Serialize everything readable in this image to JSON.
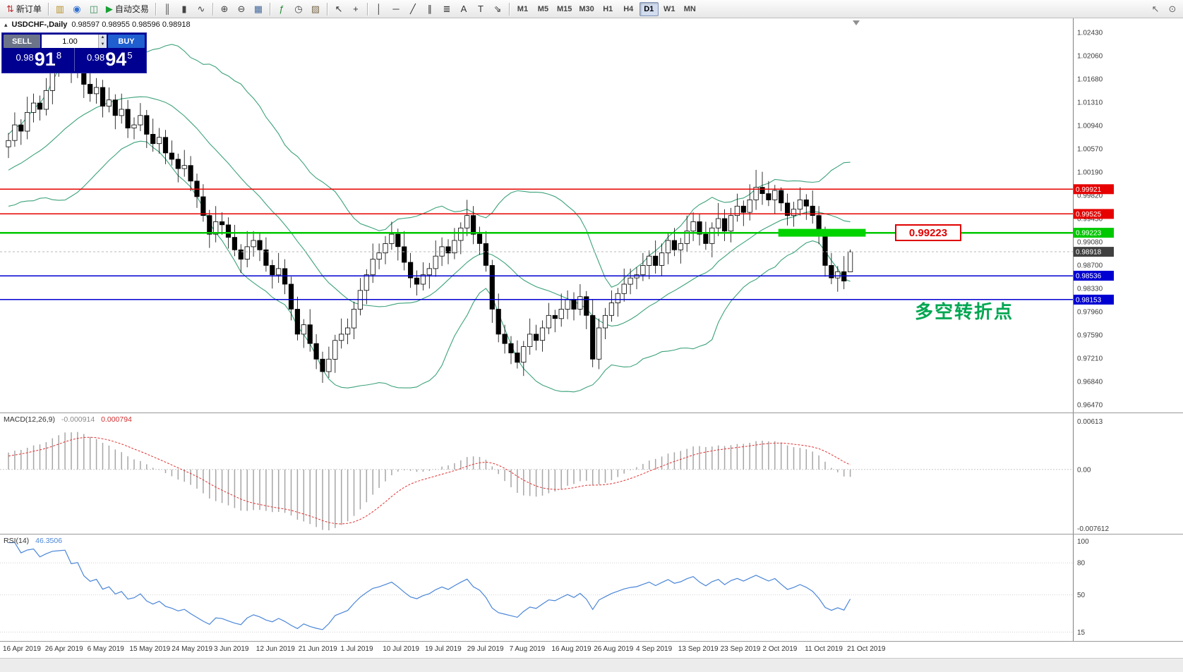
{
  "colors": {
    "bollinger": "#3da27a",
    "level_red": "#e60000",
    "level_blue": "#0000d2",
    "level_green": "#00c800",
    "zone": "#00d300",
    "current_tag": "#404040",
    "macd_hist": "#a6a6a6",
    "macd_signal": "#e03232",
    "rsi_line": "#4a86d8",
    "annotation_green": "#00a651",
    "bull_candle": "#ffffff",
    "bear_candle": "#000000"
  },
  "icons": {
    "title_marker": "▴",
    "spin_up": "▲",
    "spin_down": "▼"
  },
  "toolbar": {
    "items": [
      {
        "name": "new-order",
        "glyph": "⇅",
        "color": "#c03030",
        "label": "新订单"
      },
      {
        "sep": true
      },
      {
        "name": "market-watch",
        "glyph": "▥",
        "color": "#b8922a"
      },
      {
        "name": "data-window",
        "glyph": "◉",
        "color": "#2f6fd0"
      },
      {
        "name": "navigator",
        "glyph": "◫",
        "color": "#3f8f5f"
      },
      {
        "name": "auto-trading",
        "glyph": "▶",
        "color": "#17a034",
        "label": "自动交易"
      },
      {
        "sep": true
      },
      {
        "name": "chart-bars",
        "glyph": "║",
        "color": "#444444"
      },
      {
        "name": "chart-candlesticks",
        "glyph": "▮",
        "color": "#444444"
      },
      {
        "name": "chart-line",
        "glyph": "∿",
        "color": "#444444"
      },
      {
        "sep": true
      },
      {
        "name": "zoom-in",
        "glyph": "⊕",
        "color": "#444444"
      },
      {
        "name": "zoom-out",
        "glyph": "⊖",
        "color": "#444444"
      },
      {
        "name": "tile-windows",
        "glyph": "▦",
        "color": "#44699c"
      },
      {
        "sep": true
      },
      {
        "name": "indicators",
        "glyph": "ƒ",
        "color": "#1d8a2f"
      },
      {
        "name": "periods",
        "glyph": "◷",
        "color": "#444444"
      },
      {
        "name": "templates",
        "glyph": "▨",
        "color": "#7a6a4a"
      },
      {
        "sep": true
      },
      {
        "name": "cursor",
        "glyph": "↖",
        "color": "#333333"
      },
      {
        "name": "crosshair",
        "glyph": "+",
        "color": "#333333"
      },
      {
        "sep": true
      },
      {
        "name": "draw-vertical-line",
        "glyph": "│",
        "color": "#333333"
      },
      {
        "name": "draw-horizontal-line",
        "glyph": "─",
        "color": "#333333"
      },
      {
        "name": "draw-trendline",
        "glyph": "╱",
        "color": "#333333"
      },
      {
        "name": "draw-channel",
        "glyph": "∥",
        "color": "#333333"
      },
      {
        "name": "draw-fibonacci",
        "glyph": "≣",
        "color": "#333333"
      },
      {
        "name": "draw-text",
        "glyph": "A",
        "color": "#333333"
      },
      {
        "name": "draw-label",
        "glyph": "T",
        "color": "#333333"
      },
      {
        "name": "draw-arrows",
        "glyph": "⇘",
        "color": "#333333"
      },
      {
        "sep": true
      }
    ],
    "timeframes": [
      "M1",
      "M5",
      "M15",
      "M30",
      "H1",
      "H4",
      "D1",
      "W1",
      "MN"
    ],
    "active_timeframe": "D1",
    "right_items": [
      {
        "name": "pointer-tool",
        "glyph": "↖",
        "color": "#666666"
      },
      {
        "name": "quick-search",
        "glyph": "⊙",
        "color": "#666666"
      }
    ]
  },
  "chart": {
    "symbol_title": "USDCHF-,Daily",
    "ohlc": "0.98597 0.98955 0.98596 0.98918",
    "price_callout": "0.99223",
    "annotation": "多空转折点",
    "trade_panel": {
      "sell_label": "SELL",
      "buy_label": "BUY",
      "volume": "1.00",
      "sell_price": {
        "base": "0.98",
        "big": "91",
        "pip": "8"
      },
      "buy_price": {
        "base": "0.98",
        "big": "94",
        "pip": "5"
      }
    }
  },
  "indicators": {
    "macd": {
      "label": "MACD(12,26,9)",
      "value_main": "-0.000914",
      "value_signal": "0.000794"
    },
    "rsi": {
      "label": "RSI(14)",
      "value": "46.3506"
    }
  },
  "chart_data": {
    "type": "candlestick",
    "symbol": "USDCHF-",
    "timeframe": "D1",
    "y_range": [
      0.9647,
      1.0243
    ],
    "price_axis_labels": [
      "1.02430",
      "1.02060",
      "1.01680",
      "1.01310",
      "1.00940",
      "1.00570",
      "1.00190",
      "0.99820",
      "0.99450",
      "0.99080",
      "0.98700",
      "0.98330",
      "0.97960",
      "0.97590",
      "0.97210",
      "0.96840",
      "0.96470"
    ],
    "date_labels": [
      "16 Apr 2019",
      "26 Apr 2019",
      "6 May 2019",
      "15 May 2019",
      "24 May 2019",
      "3 Jun 2019",
      "12 Jun 2019",
      "21 Jun 2019",
      "1 Jul 2019",
      "10 Jul 2019",
      "19 Jul 2019",
      "29 Jul 2019",
      "7 Aug 2019",
      "16 Aug 2019",
      "26 Aug 2019",
      "4 Sep 2019",
      "13 Sep 2019",
      "23 Sep 2019",
      "2 Oct 2019",
      "11 Oct 2019",
      "21 Oct 2019"
    ],
    "levels": [
      {
        "price": 0.99921,
        "label": "0.99921",
        "color": "#e60000",
        "type": "resistance"
      },
      {
        "price": 0.99525,
        "label": "0.99525",
        "color": "#e60000",
        "type": "resistance"
      },
      {
        "price": 0.99223,
        "label": "0.99223",
        "color": "#00c800",
        "type": "pivot"
      },
      {
        "price": 0.98918,
        "label": "0.98918",
        "color": "#404040",
        "type": "current"
      },
      {
        "price": 0.98536,
        "label": "0.98536",
        "color": "#0000d2",
        "type": "support"
      },
      {
        "price": 0.98153,
        "label": "0.98153",
        "color": "#0000d2",
        "type": "support"
      }
    ],
    "green_zone": {
      "price": 0.99223,
      "start_index": 123,
      "end_index": 136
    },
    "overlays": {
      "bollinger": {
        "period": 20,
        "deviation": 2,
        "color": "#3da27a"
      }
    },
    "macd": {
      "params": [
        12,
        26,
        9
      ],
      "axis_labels": [
        "0.00613",
        "0.00",
        "-0.007612"
      ],
      "y_range": [
        -0.007612,
        0.00613
      ]
    },
    "rsi": {
      "period": 14,
      "axis_labels": [
        "100",
        "80",
        "50",
        "15"
      ],
      "levels": [
        80,
        50,
        15
      ],
      "last_value": 46.3506
    },
    "candles": [
      [
        1.006,
        1.0082,
        1.0042,
        1.007
      ],
      [
        1.007,
        1.0115,
        1.006,
        1.0095
      ],
      [
        1.0095,
        1.0104,
        1.0063,
        1.0085
      ],
      [
        1.0085,
        1.014,
        1.0072,
        1.0115
      ],
      [
        1.0115,
        1.0145,
        1.0099,
        1.013
      ],
      [
        1.013,
        1.0142,
        1.0102,
        1.012
      ],
      [
        1.012,
        1.017,
        1.011,
        1.015
      ],
      [
        1.015,
        1.0194,
        1.0128,
        1.0185
      ],
      [
        1.0185,
        1.022,
        1.0172,
        1.0195
      ],
      [
        1.0195,
        1.022,
        1.0179,
        1.0205
      ],
      [
        1.0205,
        1.0217,
        1.0162,
        1.018
      ],
      [
        1.018,
        1.021,
        1.017,
        1.019
      ],
      [
        1.019,
        1.0199,
        1.0138,
        1.016
      ],
      [
        1.016,
        1.0185,
        1.0132,
        1.0145
      ],
      [
        1.0145,
        1.017,
        1.0129,
        1.0155
      ],
      [
        1.0155,
        1.0167,
        1.0107,
        1.0125
      ],
      [
        1.0125,
        1.0155,
        1.0115,
        1.0135
      ],
      [
        1.0135,
        1.0144,
        1.0088,
        1.011
      ],
      [
        1.011,
        1.0145,
        1.0097,
        1.012
      ],
      [
        1.012,
        1.0135,
        1.0074,
        1.009
      ],
      [
        1.009,
        1.0107,
        1.0072,
        1.0095
      ],
      [
        1.0095,
        1.013,
        1.0085,
        1.011
      ],
      [
        1.011,
        1.0119,
        1.0058,
        1.008
      ],
      [
        1.008,
        1.0105,
        1.0052,
        1.0065
      ],
      [
        1.0065,
        1.009,
        1.0049,
        1.0075
      ],
      [
        1.0075,
        1.0087,
        1.0032,
        1.005
      ],
      [
        1.005,
        1.007,
        1.003,
        1.004
      ],
      [
        1.004,
        1.0049,
        1.0003,
        1.0025
      ],
      [
        1.0025,
        1.0055,
        1.0012,
        1.003
      ],
      [
        1.003,
        1.0045,
        0.9989,
        1.0005
      ],
      [
        1.0005,
        1.0017,
        0.9962,
        0.998
      ],
      [
        0.998,
        1.0,
        0.994,
        0.995
      ],
      [
        0.995,
        0.9959,
        0.9898,
        0.992
      ],
      [
        0.992,
        0.9965,
        0.9907,
        0.994
      ],
      [
        0.994,
        0.9955,
        0.9919,
        0.9935
      ],
      [
        0.9935,
        0.9947,
        0.9897,
        0.9915
      ],
      [
        0.9915,
        0.9935,
        0.9885,
        0.9895
      ],
      [
        0.9895,
        0.9904,
        0.9858,
        0.988
      ],
      [
        0.988,
        0.9925,
        0.9867,
        0.99
      ],
      [
        0.99,
        0.9925,
        0.9884,
        0.991
      ],
      [
        0.991,
        0.9922,
        0.9877,
        0.9895
      ],
      [
        0.9895,
        0.9915,
        0.986,
        0.987
      ],
      [
        0.987,
        0.9879,
        0.9833,
        0.9855
      ],
      [
        0.9855,
        0.989,
        0.9842,
        0.9865
      ],
      [
        0.9865,
        0.988,
        0.9824,
        0.984
      ],
      [
        0.984,
        0.9852,
        0.9782,
        0.98
      ],
      [
        0.98,
        0.982,
        0.975,
        0.976
      ],
      [
        0.976,
        0.9784,
        0.9738,
        0.9775
      ],
      [
        0.9775,
        0.98,
        0.9732,
        0.9745
      ],
      [
        0.9745,
        0.976,
        0.9704,
        0.972
      ],
      [
        0.972,
        0.9732,
        0.9682,
        0.97
      ],
      [
        0.97,
        0.974,
        0.969,
        0.972
      ],
      [
        0.972,
        0.9759,
        0.9698,
        0.975
      ],
      [
        0.975,
        0.9785,
        0.9737,
        0.976
      ],
      [
        0.976,
        0.9785,
        0.9744,
        0.977
      ],
      [
        0.977,
        0.9812,
        0.9752,
        0.98
      ],
      [
        0.98,
        0.985,
        0.979,
        0.983
      ],
      [
        0.983,
        0.9864,
        0.9808,
        0.9855
      ],
      [
        0.9855,
        0.9905,
        0.9842,
        0.988
      ],
      [
        0.988,
        0.9905,
        0.9864,
        0.989
      ],
      [
        0.989,
        0.9917,
        0.9872,
        0.9905
      ],
      [
        0.9905,
        0.994,
        0.9895,
        0.992
      ],
      [
        0.992,
        0.9929,
        0.9878,
        0.99
      ],
      [
        0.99,
        0.9925,
        0.9862,
        0.9875
      ],
      [
        0.9875,
        0.989,
        0.9834,
        0.985
      ],
      [
        0.985,
        0.9862,
        0.9822,
        0.984
      ],
      [
        0.984,
        0.9875,
        0.983,
        0.9855
      ],
      [
        0.9855,
        0.9874,
        0.9833,
        0.9865
      ],
      [
        0.9865,
        0.991,
        0.9852,
        0.9885
      ],
      [
        0.9885,
        0.9915,
        0.9869,
        0.99
      ],
      [
        0.99,
        0.9912,
        0.9872,
        0.989
      ],
      [
        0.989,
        0.993,
        0.988,
        0.991
      ],
      [
        0.991,
        0.9939,
        0.9888,
        0.993
      ],
      [
        0.993,
        0.9975,
        0.9917,
        0.995
      ],
      [
        0.995,
        0.9965,
        0.9904,
        0.992
      ],
      [
        0.992,
        0.9932,
        0.9887,
        0.9905
      ],
      [
        0.9905,
        0.9925,
        0.986,
        0.987
      ],
      [
        0.987,
        0.9879,
        0.9778,
        0.98
      ],
      [
        0.98,
        0.9825,
        0.9747,
        0.976
      ],
      [
        0.976,
        0.9775,
        0.9729,
        0.9745
      ],
      [
        0.9745,
        0.9757,
        0.9712,
        0.973
      ],
      [
        0.973,
        0.975,
        0.9705,
        0.9715
      ],
      [
        0.9715,
        0.9749,
        0.9693,
        0.974
      ],
      [
        0.974,
        0.9785,
        0.9727,
        0.976
      ],
      [
        0.976,
        0.9775,
        0.9734,
        0.975
      ],
      [
        0.975,
        0.9782,
        0.9732,
        0.977
      ],
      [
        0.977,
        0.981,
        0.976,
        0.979
      ],
      [
        0.979,
        0.9799,
        0.9763,
        0.9785
      ],
      [
        0.9785,
        0.9825,
        0.9772,
        0.98
      ],
      [
        0.98,
        0.983,
        0.9784,
        0.9815
      ],
      [
        0.9815,
        0.9827,
        0.9782,
        0.98
      ],
      [
        0.98,
        0.984,
        0.979,
        0.982
      ],
      [
        0.982,
        0.9829,
        0.9768,
        0.979
      ],
      [
        0.979,
        0.9815,
        0.9707,
        0.972
      ],
      [
        0.972,
        0.9785,
        0.9704,
        0.977
      ],
      [
        0.977,
        0.9802,
        0.9752,
        0.979
      ],
      [
        0.979,
        0.983,
        0.978,
        0.981
      ],
      [
        0.981,
        0.9834,
        0.9788,
        0.9825
      ],
      [
        0.9825,
        0.9865,
        0.9812,
        0.984
      ],
      [
        0.984,
        0.9865,
        0.9824,
        0.985
      ],
      [
        0.985,
        0.9867,
        0.9832,
        0.9855
      ],
      [
        0.9855,
        0.989,
        0.9845,
        0.987
      ],
      [
        0.987,
        0.9894,
        0.9848,
        0.9885
      ],
      [
        0.9885,
        0.991,
        0.9857,
        0.987
      ],
      [
        0.987,
        0.9905,
        0.9854,
        0.989
      ],
      [
        0.989,
        0.9922,
        0.9872,
        0.991
      ],
      [
        0.991,
        0.993,
        0.9885,
        0.9895
      ],
      [
        0.9895,
        0.9914,
        0.9873,
        0.9905
      ],
      [
        0.9905,
        0.995,
        0.9892,
        0.9925
      ],
      [
        0.9925,
        0.9955,
        0.9909,
        0.994
      ],
      [
        0.994,
        0.9952,
        0.9902,
        0.992
      ],
      [
        0.992,
        0.994,
        0.9895,
        0.9905
      ],
      [
        0.9905,
        0.9939,
        0.9883,
        0.993
      ],
      [
        0.993,
        0.997,
        0.9917,
        0.9945
      ],
      [
        0.9945,
        0.996,
        0.9909,
        0.9925
      ],
      [
        0.9925,
        0.9962,
        0.9907,
        0.995
      ],
      [
        0.995,
        0.9985,
        0.994,
        0.9965
      ],
      [
        0.9965,
        0.9974,
        0.9933,
        0.9955
      ],
      [
        0.9955,
        1.0,
        0.9942,
        0.9975
      ],
      [
        0.9975,
        1.0023,
        0.9959,
        0.9995
      ],
      [
        0.9995,
        1.002,
        0.9967,
        0.9985
      ],
      [
        0.9985,
        1.0005,
        0.9965,
        0.9975
      ],
      [
        0.9975,
        0.9999,
        0.9953,
        0.999
      ],
      [
        0.999,
        0.9995,
        0.9957,
        0.997
      ],
      [
        0.997,
        0.9985,
        0.9934,
        0.995
      ],
      [
        0.995,
        0.9972,
        0.9932,
        0.996
      ],
      [
        0.996,
        0.9995,
        0.995,
        0.9975
      ],
      [
        0.9975,
        0.9984,
        0.9943,
        0.9965
      ],
      [
        0.9965,
        0.999,
        0.9937,
        0.995
      ],
      [
        0.995,
        0.9965,
        0.9904,
        0.992
      ],
      [
        0.992,
        0.9932,
        0.9852,
        0.987
      ],
      [
        0.987,
        0.989,
        0.984,
        0.985
      ],
      [
        0.985,
        0.9869,
        0.9828,
        0.986
      ],
      [
        0.986,
        0.9885,
        0.9832,
        0.9845
      ],
      [
        0.98597,
        0.98955,
        0.98596,
        0.98918
      ]
    ]
  }
}
